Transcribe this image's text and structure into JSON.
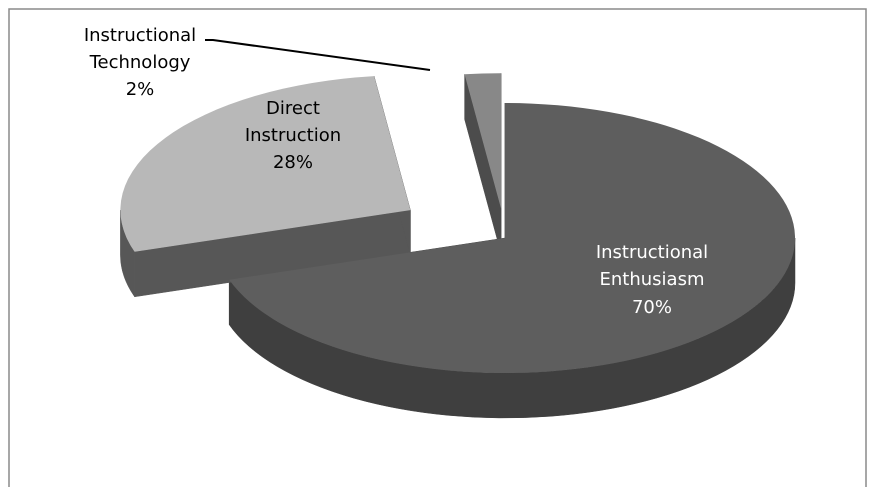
{
  "chart_data": {
    "type": "pie",
    "style": "3d-exploded",
    "title": "",
    "legend": "none",
    "slices": [
      {
        "label_line1": "Instructional",
        "label_line2": "Enthusiasm",
        "percent_text": "70%",
        "value": 70,
        "color": "#5e5e5e",
        "side_color": "#3f3f3f",
        "text_color": "#ffffff"
      },
      {
        "label_line1": "Direct",
        "label_line2": "Instruction",
        "percent_text": "28%",
        "value": 28,
        "color": "#b8b8b8",
        "side_color": "#575757",
        "text_color": "#000000"
      },
      {
        "label_line1": "Instructional",
        "label_line2": "Technology",
        "percent_text": "2%",
        "value": 2,
        "color": "#888888",
        "side_color": "#4c4c4c",
        "text_color": "#000000"
      }
    ]
  }
}
